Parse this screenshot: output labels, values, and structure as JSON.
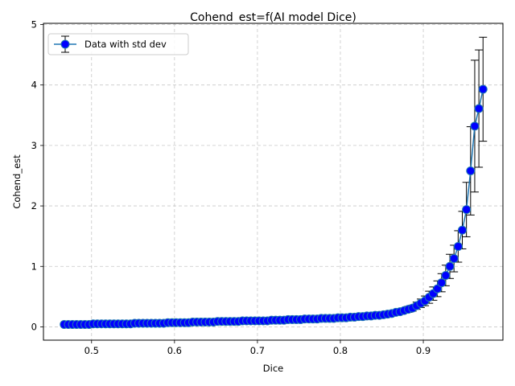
{
  "chart_data": {
    "type": "scatter",
    "title": "Cohend_est=f(AI model Dice)",
    "xlabel": "Dice",
    "ylabel": "Cohend_est",
    "xlim": [
      0.442,
      0.996
    ],
    "ylim": [
      -0.22,
      5.02
    ],
    "xticks": [
      0.5,
      0.6,
      0.7,
      0.8,
      0.9
    ],
    "xtick_labels": [
      "0.5",
      "0.6",
      "0.7",
      "0.8",
      "0.9"
    ],
    "yticks": [
      0,
      1,
      2,
      3,
      4,
      5
    ],
    "ytick_labels": [
      "0",
      "1",
      "2",
      "3",
      "4",
      "5"
    ],
    "grid": true,
    "legend_position": "top-left",
    "series": [
      {
        "name": "Data with std dev",
        "line_color": "#1f77b4",
        "marker_color": "#0000ff",
        "marker_edge": "#1f77b4",
        "errorbar_color": "#000000",
        "x": [
          0.467,
          0.472,
          0.477,
          0.482,
          0.487,
          0.492,
          0.497,
          0.502,
          0.507,
          0.512,
          0.517,
          0.522,
          0.527,
          0.532,
          0.537,
          0.542,
          0.547,
          0.552,
          0.557,
          0.562,
          0.567,
          0.572,
          0.577,
          0.582,
          0.587,
          0.592,
          0.597,
          0.602,
          0.607,
          0.612,
          0.617,
          0.622,
          0.627,
          0.632,
          0.637,
          0.642,
          0.647,
          0.652,
          0.657,
          0.662,
          0.667,
          0.672,
          0.677,
          0.682,
          0.687,
          0.692,
          0.697,
          0.702,
          0.707,
          0.712,
          0.717,
          0.722,
          0.727,
          0.732,
          0.737,
          0.742,
          0.747,
          0.752,
          0.757,
          0.762,
          0.767,
          0.772,
          0.777,
          0.782,
          0.787,
          0.792,
          0.797,
          0.802,
          0.807,
          0.812,
          0.817,
          0.822,
          0.827,
          0.832,
          0.837,
          0.842,
          0.847,
          0.852,
          0.857,
          0.862,
          0.867,
          0.872,
          0.877,
          0.882,
          0.887,
          0.892,
          0.897,
          0.902,
          0.907,
          0.912,
          0.917,
          0.922,
          0.927,
          0.932,
          0.937,
          0.942,
          0.947,
          0.952,
          0.957,
          0.962,
          0.967,
          0.972
        ],
        "y": [
          0.04,
          0.04,
          0.04,
          0.04,
          0.04,
          0.04,
          0.04,
          0.05,
          0.05,
          0.05,
          0.05,
          0.05,
          0.05,
          0.05,
          0.05,
          0.05,
          0.05,
          0.06,
          0.06,
          0.06,
          0.06,
          0.06,
          0.06,
          0.06,
          0.06,
          0.07,
          0.07,
          0.07,
          0.07,
          0.07,
          0.07,
          0.08,
          0.08,
          0.08,
          0.08,
          0.08,
          0.08,
          0.09,
          0.09,
          0.09,
          0.09,
          0.09,
          0.09,
          0.1,
          0.1,
          0.1,
          0.1,
          0.1,
          0.1,
          0.1,
          0.11,
          0.11,
          0.11,
          0.11,
          0.12,
          0.12,
          0.12,
          0.12,
          0.13,
          0.13,
          0.13,
          0.13,
          0.14,
          0.14,
          0.14,
          0.14,
          0.15,
          0.15,
          0.15,
          0.16,
          0.16,
          0.17,
          0.17,
          0.18,
          0.18,
          0.19,
          0.19,
          0.2,
          0.21,
          0.22,
          0.24,
          0.25,
          0.27,
          0.29,
          0.31,
          0.35,
          0.39,
          0.43,
          0.49,
          0.55,
          0.63,
          0.73,
          0.85,
          1.0,
          1.13,
          1.33,
          1.6,
          1.94,
          2.58,
          3.32,
          3.61,
          3.93
        ],
        "err": [
          0.01,
          0.01,
          0.01,
          0.01,
          0.01,
          0.01,
          0.01,
          0.01,
          0.01,
          0.01,
          0.01,
          0.01,
          0.01,
          0.01,
          0.01,
          0.01,
          0.01,
          0.01,
          0.01,
          0.01,
          0.01,
          0.01,
          0.01,
          0.01,
          0.01,
          0.01,
          0.01,
          0.01,
          0.01,
          0.01,
          0.01,
          0.01,
          0.01,
          0.01,
          0.01,
          0.01,
          0.01,
          0.01,
          0.01,
          0.01,
          0.01,
          0.01,
          0.01,
          0.01,
          0.01,
          0.01,
          0.01,
          0.01,
          0.01,
          0.01,
          0.01,
          0.01,
          0.01,
          0.01,
          0.01,
          0.01,
          0.01,
          0.01,
          0.01,
          0.01,
          0.01,
          0.01,
          0.01,
          0.01,
          0.01,
          0.01,
          0.02,
          0.02,
          0.02,
          0.02,
          0.02,
          0.02,
          0.02,
          0.02,
          0.02,
          0.03,
          0.03,
          0.03,
          0.03,
          0.03,
          0.04,
          0.04,
          0.04,
          0.05,
          0.05,
          0.06,
          0.07,
          0.08,
          0.1,
          0.11,
          0.13,
          0.15,
          0.17,
          0.2,
          0.22,
          0.26,
          0.31,
          0.45,
          0.73,
          1.09,
          0.97,
          0.86
        ]
      }
    ]
  }
}
